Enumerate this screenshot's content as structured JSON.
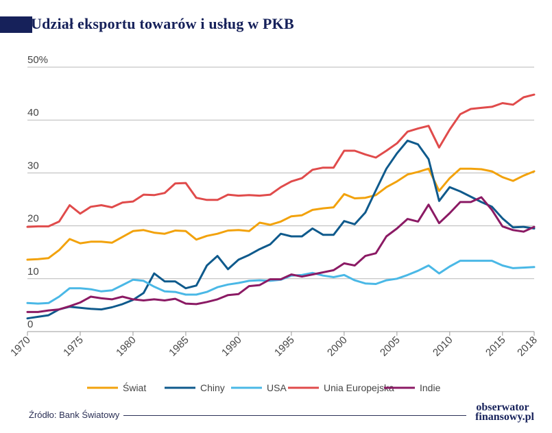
{
  "title": "Udział eksportu towarów i usług w PKB",
  "source": "Źródło: Bank Światowy",
  "logo": {
    "line1": "obserwator",
    "line2": "finansowy.pl"
  },
  "chart_data": {
    "type": "line",
    "title": "Udział eksportu towarów i usług w PKB",
    "xlabel": "",
    "ylabel": "",
    "ylim": [
      0,
      50
    ],
    "xlim": [
      1970,
      2018
    ],
    "y_ticks": [
      {
        "value": 0,
        "label": "0"
      },
      {
        "value": 10,
        "label": "10"
      },
      {
        "value": 20,
        "label": "20"
      },
      {
        "value": 30,
        "label": "30"
      },
      {
        "value": 40,
        "label": "40"
      },
      {
        "value": 50,
        "label": "50%"
      }
    ],
    "x_ticks": [
      1970,
      1975,
      1980,
      1985,
      1990,
      1995,
      2000,
      2005,
      2010,
      2015,
      2018
    ],
    "legend_position": "bottom",
    "x": [
      1970,
      1971,
      1972,
      1973,
      1974,
      1975,
      1976,
      1977,
      1978,
      1979,
      1980,
      1981,
      1982,
      1983,
      1984,
      1985,
      1986,
      1987,
      1988,
      1989,
      1990,
      1991,
      1992,
      1993,
      1994,
      1995,
      1996,
      1997,
      1998,
      1999,
      2000,
      2001,
      2002,
      2003,
      2004,
      2005,
      2006,
      2007,
      2008,
      2009,
      2010,
      2011,
      2012,
      2013,
      2014,
      2015,
      2016,
      2017,
      2018
    ],
    "series": [
      {
        "name": "Świat",
        "color": "#f2a20c",
        "values": [
          13.6,
          13.7,
          13.9,
          15.4,
          17.5,
          16.7,
          17.0,
          17.0,
          16.8,
          17.9,
          19.0,
          19.2,
          18.7,
          18.5,
          19.1,
          19.0,
          17.4,
          18.1,
          18.5,
          19.1,
          19.2,
          19.0,
          20.6,
          20.2,
          20.8,
          21.8,
          22.0,
          23.0,
          23.3,
          23.5,
          26.0,
          25.2,
          25.3,
          25.8,
          27.3,
          28.4,
          29.7,
          30.2,
          30.8,
          26.6,
          29.0,
          30.8,
          30.8,
          30.7,
          30.3,
          29.2,
          28.5,
          29.5,
          30.3
        ]
      },
      {
        "name": "Chiny",
        "color": "#0f5a8c",
        "values": [
          2.5,
          2.8,
          3.1,
          4.2,
          4.7,
          4.5,
          4.3,
          4.2,
          4.6,
          5.2,
          6.0,
          7.3,
          11.0,
          9.5,
          9.5,
          8.2,
          8.7,
          12.5,
          14.3,
          11.8,
          13.6,
          14.5,
          15.6,
          16.5,
          18.5,
          18.0,
          18.0,
          19.5,
          18.3,
          18.3,
          20.9,
          20.3,
          22.5,
          26.7,
          30.8,
          33.7,
          36.1,
          35.4,
          32.6,
          24.7,
          27.3,
          26.5,
          25.5,
          24.5,
          23.6,
          21.4,
          19.7,
          19.8,
          19.5
        ]
      },
      {
        "name": "USA",
        "color": "#4ab8e6",
        "values": [
          5.4,
          5.3,
          5.4,
          6.6,
          8.2,
          8.2,
          8.0,
          7.6,
          7.8,
          8.8,
          9.8,
          9.6,
          8.5,
          7.6,
          7.5,
          7.0,
          7.0,
          7.5,
          8.4,
          8.9,
          9.2,
          9.6,
          9.7,
          9.6,
          9.8,
          10.6,
          10.7,
          11.1,
          10.6,
          10.3,
          10.7,
          9.7,
          9.1,
          9.0,
          9.7,
          10.0,
          10.7,
          11.5,
          12.5,
          11.0,
          12.3,
          13.4,
          13.4,
          13.4,
          13.4,
          12.5,
          12.0,
          12.1,
          12.2
        ]
      },
      {
        "name": "Unia Europejska",
        "color": "#e04b4b",
        "values": [
          19.8,
          19.9,
          19.9,
          20.8,
          23.9,
          22.3,
          23.6,
          23.9,
          23.5,
          24.4,
          24.6,
          25.9,
          25.8,
          26.2,
          28.0,
          28.1,
          25.3,
          24.9,
          24.9,
          25.9,
          25.7,
          25.8,
          25.7,
          25.9,
          27.3,
          28.4,
          29.0,
          30.6,
          31.0,
          31.0,
          34.2,
          34.2,
          33.5,
          32.9,
          34.2,
          35.6,
          37.8,
          38.4,
          38.9,
          34.8,
          38.2,
          41.1,
          42.1,
          42.3,
          42.5,
          43.2,
          42.9,
          44.3,
          44.8
        ]
      },
      {
        "name": "Indie",
        "color": "#8b1a64",
        "values": [
          3.7,
          3.7,
          4.0,
          4.2,
          4.8,
          5.5,
          6.6,
          6.3,
          6.1,
          6.6,
          6.1,
          5.9,
          6.1,
          5.9,
          6.2,
          5.3,
          5.2,
          5.6,
          6.1,
          6.9,
          7.1,
          8.6,
          8.8,
          9.9,
          9.9,
          10.8,
          10.4,
          10.8,
          11.2,
          11.6,
          12.9,
          12.5,
          14.3,
          14.8,
          18.0,
          19.5,
          21.3,
          20.8,
          24.0,
          20.5,
          22.4,
          24.5,
          24.5,
          25.4,
          23.0,
          19.9,
          19.2,
          18.9,
          19.8
        ]
      }
    ]
  }
}
